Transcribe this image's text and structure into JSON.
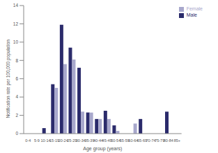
{
  "chart_data": {
    "type": "bar",
    "x_label": "Age group (years)",
    "y_label": "Notification rate per 100,000 population",
    "categories": [
      "0-4",
      "5-9",
      "10-14",
      "15-19",
      "20-24",
      "25-29",
      "30-34",
      "35-39",
      "40-44",
      "45-49",
      "50-54",
      "55-59",
      "60-64",
      "65-69",
      "70-74",
      "75-79",
      "80-84",
      "85+"
    ],
    "series": [
      {
        "name": "Male",
        "color": "#2b2b6b",
        "values": [
          0,
          0,
          0.6,
          5.4,
          11.9,
          9.4,
          7.2,
          2.3,
          1.6,
          2.5,
          0.9,
          0,
          0,
          1.6,
          0,
          0,
          2.4,
          0
        ]
      },
      {
        "name": "Female",
        "color": "#a8a8cc",
        "values": [
          0,
          0,
          0,
          5.0,
          7.6,
          8.1,
          2.4,
          2.3,
          1.6,
          1.6,
          0.3,
          0,
          1.1,
          0,
          0,
          0,
          0,
          0
        ]
      }
    ],
    "ylim": [
      0,
      14
    ],
    "yticks": [
      0,
      2,
      4,
      6,
      8,
      10,
      12,
      14
    ],
    "grid": false,
    "legend": "top-right"
  }
}
